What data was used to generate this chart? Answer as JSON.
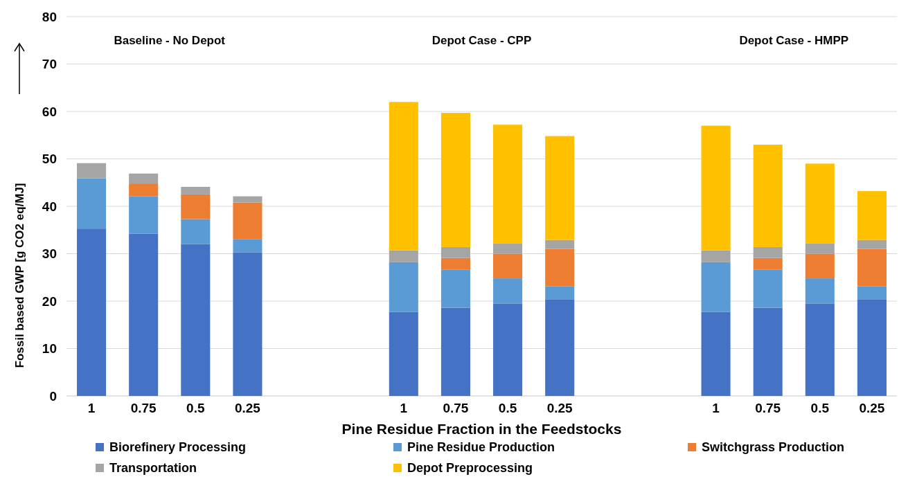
{
  "chart_data": {
    "type": "bar",
    "stacked": true,
    "xlabel": "Pine Residue Fraction in the Feedstocks",
    "ylabel": "Fossil based GWP [g CO2 eq/MJ]",
    "categories": [
      "1",
      "0.75",
      "0.5",
      "0.25",
      null,
      null,
      "1",
      "0.75",
      "0.5",
      "0.25",
      null,
      null,
      "1",
      "0.75",
      "0.5",
      "0.25"
    ],
    "series": [
      {
        "name": "Biorefinery Processing",
        "color": "#4472c4",
        "values": [
          35.3,
          34.2,
          32.0,
          30.3,
          null,
          null,
          17.7,
          18.6,
          19.5,
          20.4,
          null,
          null,
          17.7,
          18.6,
          19.5,
          20.4
        ]
      },
      {
        "name": "Pine Residue Production",
        "color": "#5b9bd5",
        "values": [
          10.6,
          7.9,
          5.3,
          2.8,
          null,
          null,
          10.5,
          8.0,
          5.3,
          2.7,
          null,
          null,
          10.5,
          8.0,
          5.3,
          2.7
        ]
      },
      {
        "name": "Switchgrass Production",
        "color": "#ed7d31",
        "values": [
          0,
          2.7,
          5.2,
          7.7,
          null,
          null,
          0,
          2.5,
          5.2,
          7.9,
          null,
          null,
          0,
          2.5,
          5.2,
          7.9
        ]
      },
      {
        "name": "Transportation",
        "color": "#a5a5a5",
        "values": [
          3.2,
          2.1,
          1.6,
          1.3,
          null,
          null,
          2.5,
          2.3,
          2.2,
          1.9,
          null,
          null,
          2.5,
          2.3,
          2.2,
          1.9
        ]
      },
      {
        "name": "Depot Preprocessing",
        "color": "#ffc000",
        "values": [
          0,
          0,
          0,
          0,
          null,
          null,
          31.3,
          28.3,
          25.0,
          21.9,
          null,
          null,
          26.3,
          21.6,
          16.8,
          10.3
        ]
      }
    ],
    "ylim": [
      0,
      80
    ],
    "yticks": [
      0,
      10,
      20,
      30,
      40,
      50,
      60,
      70,
      80
    ],
    "grid": "y",
    "legend": "bottom",
    "annotations": [
      "Baseline - No Depot",
      "Depot Case - CPP",
      "Depot Case - HMPP"
    ]
  }
}
